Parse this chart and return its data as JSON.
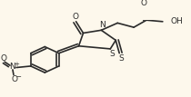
{
  "bg_color": "#fdf8ec",
  "line_color": "#2a2a2a",
  "line_width": 1.2,
  "figsize": [
    2.1,
    1.07
  ],
  "dpi": 100,
  "xlim": [
    0,
    210
  ],
  "ylim": [
    0,
    107
  ]
}
